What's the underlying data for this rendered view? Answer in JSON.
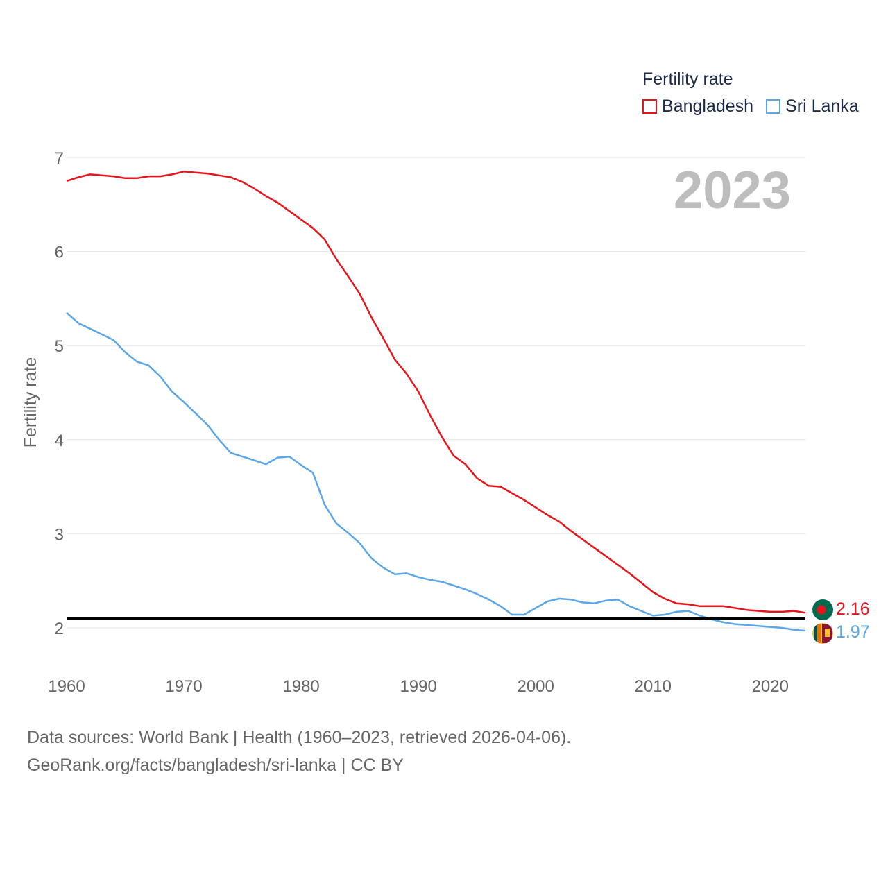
{
  "legend": {
    "title": "Fertility rate",
    "items": [
      {
        "label": "Bangladesh",
        "color": "#e8141c"
      },
      {
        "label": "Sri Lanka",
        "color": "#5aa6e6"
      }
    ]
  },
  "footer": {
    "line1": "Data sources: World Bank | Health (1960–2023, retrieved 2026-04-06).",
    "line2": "GeoRank.org/facts/bangladesh/sri-lanka | CC BY"
  },
  "chart_data": {
    "type": "line",
    "title": "Fertility rate",
    "year_label": "2023",
    "xlabel": "",
    "ylabel": "Fertility rate",
    "xlim": [
      1960,
      2023
    ],
    "ylim": [
      1.6,
      7.1
    ],
    "x_ticks": [
      1960,
      1970,
      1980,
      1990,
      2000,
      2010,
      2020
    ],
    "y_ticks": [
      2,
      3,
      4,
      5,
      6,
      7
    ],
    "reference_line": 2.1,
    "x": [
      1960,
      1961,
      1962,
      1963,
      1964,
      1965,
      1966,
      1967,
      1968,
      1969,
      1970,
      1971,
      1972,
      1973,
      1974,
      1975,
      1976,
      1977,
      1978,
      1979,
      1980,
      1981,
      1982,
      1983,
      1984,
      1985,
      1986,
      1987,
      1988,
      1989,
      1990,
      1991,
      1992,
      1993,
      1994,
      1995,
      1996,
      1997,
      1998,
      1999,
      2000,
      2001,
      2002,
      2003,
      2004,
      2005,
      2006,
      2007,
      2008,
      2009,
      2010,
      2011,
      2012,
      2013,
      2014,
      2015,
      2016,
      2017,
      2018,
      2019,
      2020,
      2021,
      2022,
      2023
    ],
    "series": [
      {
        "name": "Bangladesh",
        "color": "#e8141c",
        "end_value": "2.16",
        "values": [
          6.75,
          6.79,
          6.82,
          6.81,
          6.8,
          6.78,
          6.78,
          6.8,
          6.8,
          6.82,
          6.85,
          6.84,
          6.83,
          6.81,
          6.79,
          6.74,
          6.67,
          6.59,
          6.52,
          6.43,
          6.34,
          6.25,
          6.13,
          5.92,
          5.74,
          5.55,
          5.3,
          5.08,
          4.85,
          4.7,
          4.51,
          4.26,
          4.03,
          3.83,
          3.74,
          3.59,
          3.51,
          3.5,
          3.43,
          3.36,
          3.28,
          3.2,
          3.13,
          3.03,
          2.94,
          2.85,
          2.76,
          2.67,
          2.58,
          2.48,
          2.38,
          2.31,
          2.26,
          2.25,
          2.23,
          2.23,
          2.23,
          2.21,
          2.19,
          2.18,
          2.17,
          2.17,
          2.18,
          2.16
        ]
      },
      {
        "name": "Sri Lanka",
        "color": "#5aa6e6",
        "end_value": "1.97",
        "values": [
          5.35,
          5.24,
          5.18,
          5.12,
          5.06,
          4.93,
          4.83,
          4.79,
          4.67,
          4.51,
          4.4,
          4.28,
          4.16,
          4.0,
          3.86,
          3.82,
          3.78,
          3.74,
          3.81,
          3.82,
          3.73,
          3.65,
          3.31,
          3.11,
          3.01,
          2.9,
          2.74,
          2.64,
          2.57,
          2.58,
          2.54,
          2.51,
          2.49,
          2.45,
          2.41,
          2.36,
          2.3,
          2.23,
          2.14,
          2.14,
          2.21,
          2.28,
          2.31,
          2.3,
          2.27,
          2.26,
          2.29,
          2.3,
          2.23,
          2.18,
          2.13,
          2.14,
          2.17,
          2.18,
          2.13,
          2.09,
          2.06,
          2.04,
          2.03,
          2.02,
          2.01,
          2.0,
          1.98,
          1.97
        ]
      }
    ]
  }
}
